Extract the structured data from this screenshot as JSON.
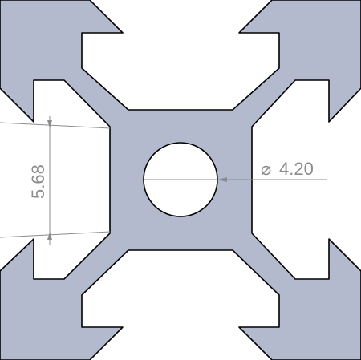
{
  "drawing": {
    "dimension_height": "5.68",
    "dimension_diameter_symbol": "⌀",
    "dimension_diameter": "4.20"
  },
  "colors": {
    "profile_fill": "#b4bace",
    "outline": "#000000",
    "dimension": "#8c8c8c",
    "background": "#ffffff"
  }
}
